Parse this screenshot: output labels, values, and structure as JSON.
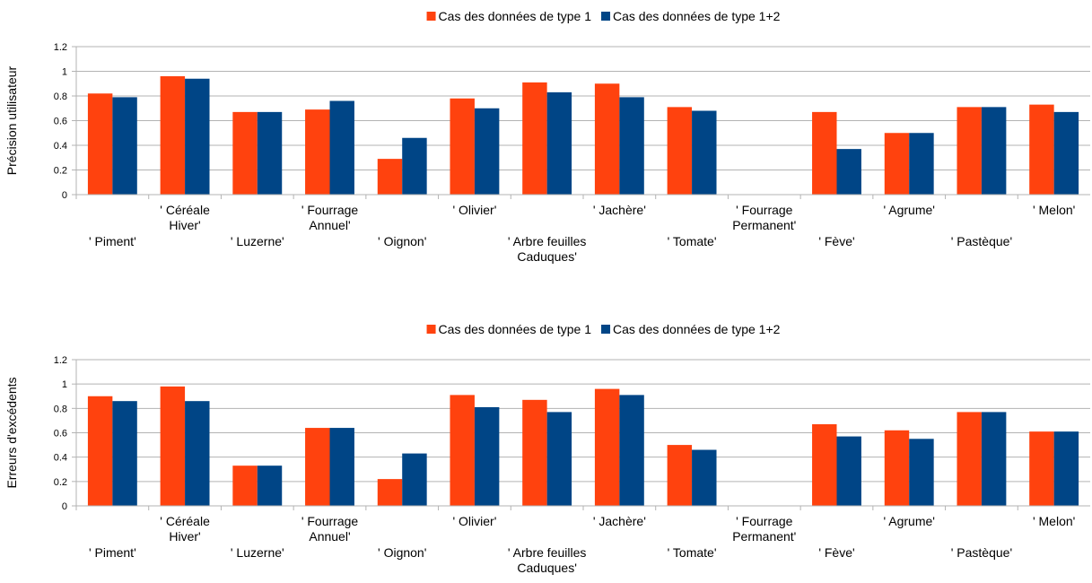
{
  "chart_data": [
    {
      "type": "bar",
      "ylabel": "Précision utilisateur",
      "categories": [
        "' Piment'",
        "' Céréale Hiver'",
        "' Luzerne'",
        "' Fourrage Annuel'",
        "' Oignon'",
        "' Olivier'",
        "' Arbre feuilles Caduques'",
        "' Jachère'",
        "' Tomate'",
        "' Fourrage Permanent'",
        "' Fève'",
        "' Agrume'",
        "' Pastèque'",
        "' Melon'"
      ],
      "series": [
        {
          "name": "Cas des données de type 1",
          "color": "#ff420e",
          "values": [
            0.82,
            0.96,
            0.67,
            0.69,
            0.29,
            0.78,
            0.91,
            0.9,
            0.71,
            0,
            0.67,
            0.5,
            0.71,
            0.73
          ]
        },
        {
          "name": "Cas des données de type 1+2",
          "color": "#004586",
          "values": [
            0.79,
            0.94,
            0.67,
            0.76,
            0.46,
            0.7,
            0.83,
            0.79,
            0.68,
            0,
            0.37,
            0.5,
            0.71,
            0.67
          ]
        }
      ],
      "ylim": [
        0,
        1.2
      ],
      "yticks": [
        0,
        0.2,
        0.4,
        0.6,
        0.8,
        1,
        1.2
      ],
      "grid": true,
      "legend": "top"
    },
    {
      "type": "bar",
      "ylabel": "Erreurs d'excédents",
      "categories": [
        "' Piment'",
        "' Céréale Hiver'",
        "' Luzerne'",
        "' Fourrage Annuel'",
        "' Oignon'",
        "' Olivier'",
        "' Arbre feuilles Caduques'",
        "' Jachère'",
        "' Tomate'",
        "' Fourrage Permanent'",
        "' Fève'",
        "' Agrume'",
        "' Pastèque'",
        "' Melon'"
      ],
      "series": [
        {
          "name": "Cas des données de type 1",
          "color": "#ff420e",
          "values": [
            0.9,
            0.98,
            0.33,
            0.64,
            0.22,
            0.91,
            0.87,
            0.96,
            0.5,
            0,
            0.67,
            0.62,
            0.77,
            0.61
          ]
        },
        {
          "name": "Cas des données de type 1+2",
          "color": "#004586",
          "values": [
            0.86,
            0.86,
            0.33,
            0.64,
            0.43,
            0.81,
            0.77,
            0.91,
            0.46,
            0,
            0.57,
            0.55,
            0.77,
            0.61
          ]
        }
      ],
      "ylim": [
        0,
        1.2
      ],
      "yticks": [
        0,
        0.2,
        0.4,
        0.6,
        0.8,
        1,
        1.2
      ],
      "grid": true,
      "legend": "top"
    }
  ]
}
